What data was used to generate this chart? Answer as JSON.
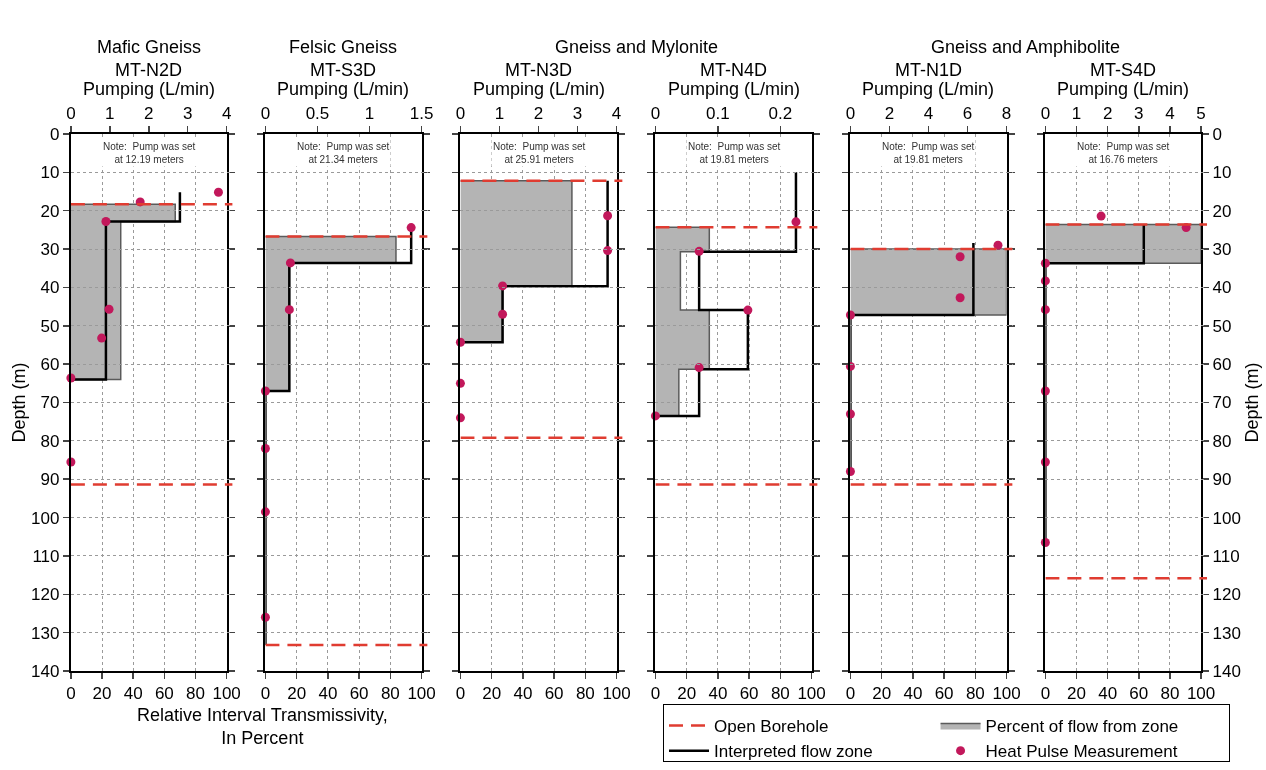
{
  "chart_data": [
    {
      "type": "line",
      "subtitle": "Mafic Gneiss",
      "title": "MT-N2D",
      "x2label": "Pumping (L/min)",
      "xlabel": "Relative Interval Transmissivity,\nIn Percent",
      "ylabel": "Depth (m)",
      "annotations": [
        "Note:  Pump was set\nat 12.19 meters"
      ],
      "xlim": [
        0,
        100
      ],
      "xticks": [
        0,
        20,
        40,
        60,
        80,
        100
      ],
      "x2lim": [
        0,
        4
      ],
      "x2ticks": [
        0,
        1,
        2,
        3,
        4
      ],
      "ylim": [
        140,
        0
      ],
      "yticks": [
        0,
        10,
        20,
        30,
        40,
        50,
        60,
        70,
        80,
        90,
        100,
        110,
        120,
        130,
        140
      ],
      "grid": true,
      "ref_lines": [
        {
          "axis": "y",
          "value": 18.3,
          "color": "#e03c31",
          "line_style": "dashed"
        },
        {
          "axis": "y",
          "value": 91.4,
          "color": "#e03c31",
          "line_style": "dashed"
        }
      ],
      "series": [
        {
          "type": "area",
          "color": "#b4b4b4",
          "x": [
            0,
            67,
            67,
            32,
            32,
            0
          ],
          "values": [
            18.3,
            18.3,
            22.8,
            22.8,
            64,
            64
          ]
        },
        {
          "axis": "x2",
          "color": "#000000",
          "x": [
            2.8,
            2.8,
            0.9,
            0.9,
            0
          ],
          "values": [
            15.2,
            22.8,
            22.8,
            64,
            64
          ]
        },
        {
          "type": "scatter",
          "axis": "x2",
          "marker": "circle",
          "color": "#c2185b",
          "x": [
            1.78,
            3.79,
            0.9,
            0.98,
            0.79,
            0,
            0
          ],
          "values": [
            17.7,
            15.2,
            22.8,
            45.7,
            53.2,
            63.6,
            85.5
          ]
        }
      ]
    },
    {
      "type": "line",
      "subtitle": "Felsic Gneiss",
      "title": "MT-S3D",
      "x2label": "Pumping (L/min)",
      "annotations": [
        "Note:  Pump was set\nat 21.34 meters"
      ],
      "xlim": [
        0,
        100
      ],
      "xticks": [
        0,
        20,
        40,
        60,
        80,
        100
      ],
      "x2lim": [
        0,
        1.5
      ],
      "x2ticks": [
        0,
        0.5,
        1,
        1.5
      ],
      "ylim": [
        140,
        0
      ],
      "yticks": [
        0,
        10,
        20,
        30,
        40,
        50,
        60,
        70,
        80,
        90,
        100,
        110,
        120,
        130,
        140
      ],
      "grid": true,
      "tick_labels": "x",
      "ref_lines": [
        {
          "axis": "y",
          "value": 26.7,
          "color": "#e03c31",
          "line_style": "dashed"
        },
        {
          "axis": "y",
          "value": 133.2,
          "color": "#e03c31",
          "line_style": "dashed"
        }
      ],
      "series": [
        {
          "type": "area",
          "color": "#b4b4b4",
          "x": [
            0,
            83.6,
            83.6,
            15,
            15,
            0
          ],
          "values": [
            26.7,
            26.7,
            33.6,
            33.6,
            67,
            67
          ]
        },
        {
          "axis": "x2",
          "color": "#000000",
          "x": [
            1.4,
            1.4,
            0.23,
            0.23,
            0,
            0
          ],
          "values": [
            24.4,
            33.6,
            33.6,
            67,
            67,
            133.2
          ]
        },
        {
          "type": "scatter",
          "axis": "x2",
          "marker": "circle",
          "color": "#c2185b",
          "x": [
            1.4,
            0.24,
            0.23,
            0,
            0,
            0,
            0
          ],
          "values": [
            24.4,
            33.6,
            45.8,
            67,
            82,
            98.5,
            126
          ]
        }
      ]
    },
    {
      "type": "line",
      "subtitle": "Gneiss and Mylonite",
      "title": "MT-N3D",
      "x2label": "Pumping (L/min)",
      "annotations": [
        "Note:  Pump was set\nat 25.91 meters"
      ],
      "xlim": [
        0,
        100
      ],
      "xticks": [
        0,
        20,
        40,
        60,
        80,
        100
      ],
      "x2lim": [
        0,
        4
      ],
      "x2ticks": [
        0,
        1,
        2,
        3,
        4
      ],
      "ylim": [
        140,
        0
      ],
      "yticks": [
        0,
        10,
        20,
        30,
        40,
        50,
        60,
        70,
        80,
        90,
        100,
        110,
        120,
        130,
        140
      ],
      "grid": true,
      "tick_labels": "x",
      "ref_lines": [
        {
          "axis": "y",
          "value": 12.2,
          "color": "#e03c31",
          "line_style": "dashed"
        },
        {
          "axis": "y",
          "value": 79.2,
          "color": "#e03c31",
          "line_style": "dashed"
        }
      ],
      "series": [
        {
          "type": "area",
          "color": "#b4b4b4",
          "x": [
            0,
            71.4,
            71.4,
            26.9,
            26.9,
            0
          ],
          "values": [
            12.2,
            12.2,
            39.7,
            39.7,
            54.3,
            54.3
          ]
        },
        {
          "axis": "x2",
          "color": "#000000",
          "x": [
            3.77,
            3.77,
            1.08,
            1.08,
            0
          ],
          "values": [
            12.2,
            39.7,
            39.7,
            54.3,
            54.3
          ]
        },
        {
          "type": "scatter",
          "axis": "x2",
          "marker": "circle",
          "color": "#c2185b",
          "x": [
            3.77,
            3.77,
            1.08,
            1.08,
            0,
            0,
            0
          ],
          "values": [
            21.3,
            30.4,
            39.6,
            47,
            54.3,
            65,
            74
          ]
        }
      ]
    },
    {
      "type": "line",
      "title": "MT-N4D",
      "x2label": "Pumping (L/min)",
      "annotations": [
        "Note:  Pump was set\nat 19.81 meters"
      ],
      "xlim": [
        0,
        100
      ],
      "xticks": [
        0,
        20,
        40,
        60,
        80,
        100
      ],
      "x2lim": [
        0,
        0.25
      ],
      "x2ticks": [
        0,
        0.1,
        0.2
      ],
      "ylim": [
        140,
        0
      ],
      "yticks": [
        0,
        10,
        20,
        30,
        40,
        50,
        60,
        70,
        80,
        90,
        100,
        110,
        120,
        130,
        140
      ],
      "grid": true,
      "tick_labels": "x",
      "ref_lines": [
        {
          "axis": "y",
          "value": 24.3,
          "color": "#e03c31",
          "line_style": "dashed"
        },
        {
          "axis": "y",
          "value": 91.4,
          "color": "#e03c31",
          "line_style": "dashed"
        }
      ],
      "series": [
        {
          "type": "area",
          "color": "#b4b4b4",
          "x": [
            0,
            34.5,
            34.5,
            16,
            16,
            34.5,
            34.5,
            15,
            15,
            0
          ],
          "values": [
            24.3,
            24.3,
            30.7,
            30.7,
            45.9,
            45.9,
            61.3,
            61.3,
            73.5,
            73.5
          ]
        },
        {
          "axis": "x2",
          "color": "#000000",
          "x": [
            0.225,
            0.225,
            0.07,
            0.07,
            0.148,
            0.148,
            0.07,
            0.07,
            0
          ],
          "values": [
            10,
            30.7,
            30.7,
            45.9,
            45.9,
            61.3,
            61.3,
            73.5,
            73.5
          ]
        },
        {
          "type": "scatter",
          "axis": "x2",
          "marker": "circle",
          "color": "#c2185b",
          "x": [
            0.225,
            0.07,
            0.148,
            0.07,
            0
          ],
          "values": [
            22.9,
            30.6,
            45.9,
            60.9,
            73.5
          ]
        }
      ]
    },
    {
      "type": "line",
      "subtitle": "Gneiss and Amphibolite",
      "title": "MT-N1D",
      "x2label": "Pumping (L/min)",
      "annotations": [
        "Note:  Pump was set\nat 19.81 meters"
      ],
      "xlim": [
        0,
        100
      ],
      "xticks": [
        0,
        20,
        40,
        60,
        80,
        100
      ],
      "x2lim": [
        0,
        8
      ],
      "x2ticks": [
        0,
        2,
        4,
        6,
        8
      ],
      "ylim": [
        140,
        0
      ],
      "yticks": [
        0,
        10,
        20,
        30,
        40,
        50,
        60,
        70,
        80,
        90,
        100,
        110,
        120,
        130,
        140
      ],
      "grid": true,
      "tick_labels": "x",
      "ref_lines": [
        {
          "axis": "y",
          "value": 30,
          "color": "#e03c31",
          "line_style": "dashed"
        },
        {
          "axis": "y",
          "value": 91.4,
          "color": "#e03c31",
          "line_style": "dashed"
        }
      ],
      "series": [
        {
          "type": "area",
          "color": "#b4b4b4",
          "x": [
            0,
            100,
            100,
            0
          ],
          "values": [
            30,
            30,
            47.2,
            47.2
          ]
        },
        {
          "axis": "x2",
          "color": "#000000",
          "x": [
            6.3,
            6.3,
            0,
            0
          ],
          "values": [
            28.4,
            47.2,
            47.2,
            88
          ]
        },
        {
          "type": "scatter",
          "axis": "x2",
          "marker": "circle",
          "color": "#c2185b",
          "x": [
            7.56,
            5.62,
            5.62,
            0,
            0,
            0,
            0
          ],
          "values": [
            29,
            32,
            42.7,
            47.2,
            60.6,
            73,
            88
          ]
        }
      ]
    },
    {
      "type": "line",
      "title": "MT-S4D",
      "x2label": "Pumping (L/min)",
      "y2label": "Depth (m)",
      "annotations": [
        "Note:  Pump was set\nat 16.76 meters"
      ],
      "xlim": [
        0,
        100
      ],
      "xticks": [
        0,
        20,
        40,
        60,
        80,
        100
      ],
      "x2lim": [
        0,
        5
      ],
      "x2ticks": [
        0,
        1,
        2,
        3,
        4,
        5
      ],
      "ylim": [
        140,
        0
      ],
      "yticks": [
        0,
        10,
        20,
        30,
        40,
        50,
        60,
        70,
        80,
        90,
        100,
        110,
        120,
        130,
        140
      ],
      "grid": true,
      "legend": "bottom left",
      "ref_lines": [
        {
          "axis": "y",
          "value": 23.6,
          "color": "#e03c31",
          "line_style": "dashed",
          "label": "Open Borehole"
        },
        {
          "axis": "y",
          "value": 115.8,
          "color": "#e03c31",
          "line_style": "dashed"
        }
      ],
      "series": [
        {
          "name": "Percent of flow from zone",
          "type": "area",
          "color": "#b4b4b4",
          "x": [
            0,
            100,
            100,
            0
          ],
          "values": [
            23.6,
            23.6,
            33.7,
            33.7
          ]
        },
        {
          "name": "Interpreted flow zone",
          "axis": "x2",
          "color": "#000000",
          "x": [
            3.16,
            3.16,
            0,
            0
          ],
          "values": [
            23.6,
            33.7,
            33.7,
            106.5
          ]
        },
        {
          "name": "Heat Pulse Measurement",
          "type": "scatter",
          "axis": "x2",
          "marker": "circle",
          "color": "#c2185b",
          "x": [
            1.79,
            4.52,
            0,
            0,
            0,
            0,
            0,
            0
          ],
          "values": [
            21.4,
            24.4,
            33.7,
            38.3,
            45.8,
            67,
            85.5,
            106.5
          ]
        }
      ]
    }
  ]
}
